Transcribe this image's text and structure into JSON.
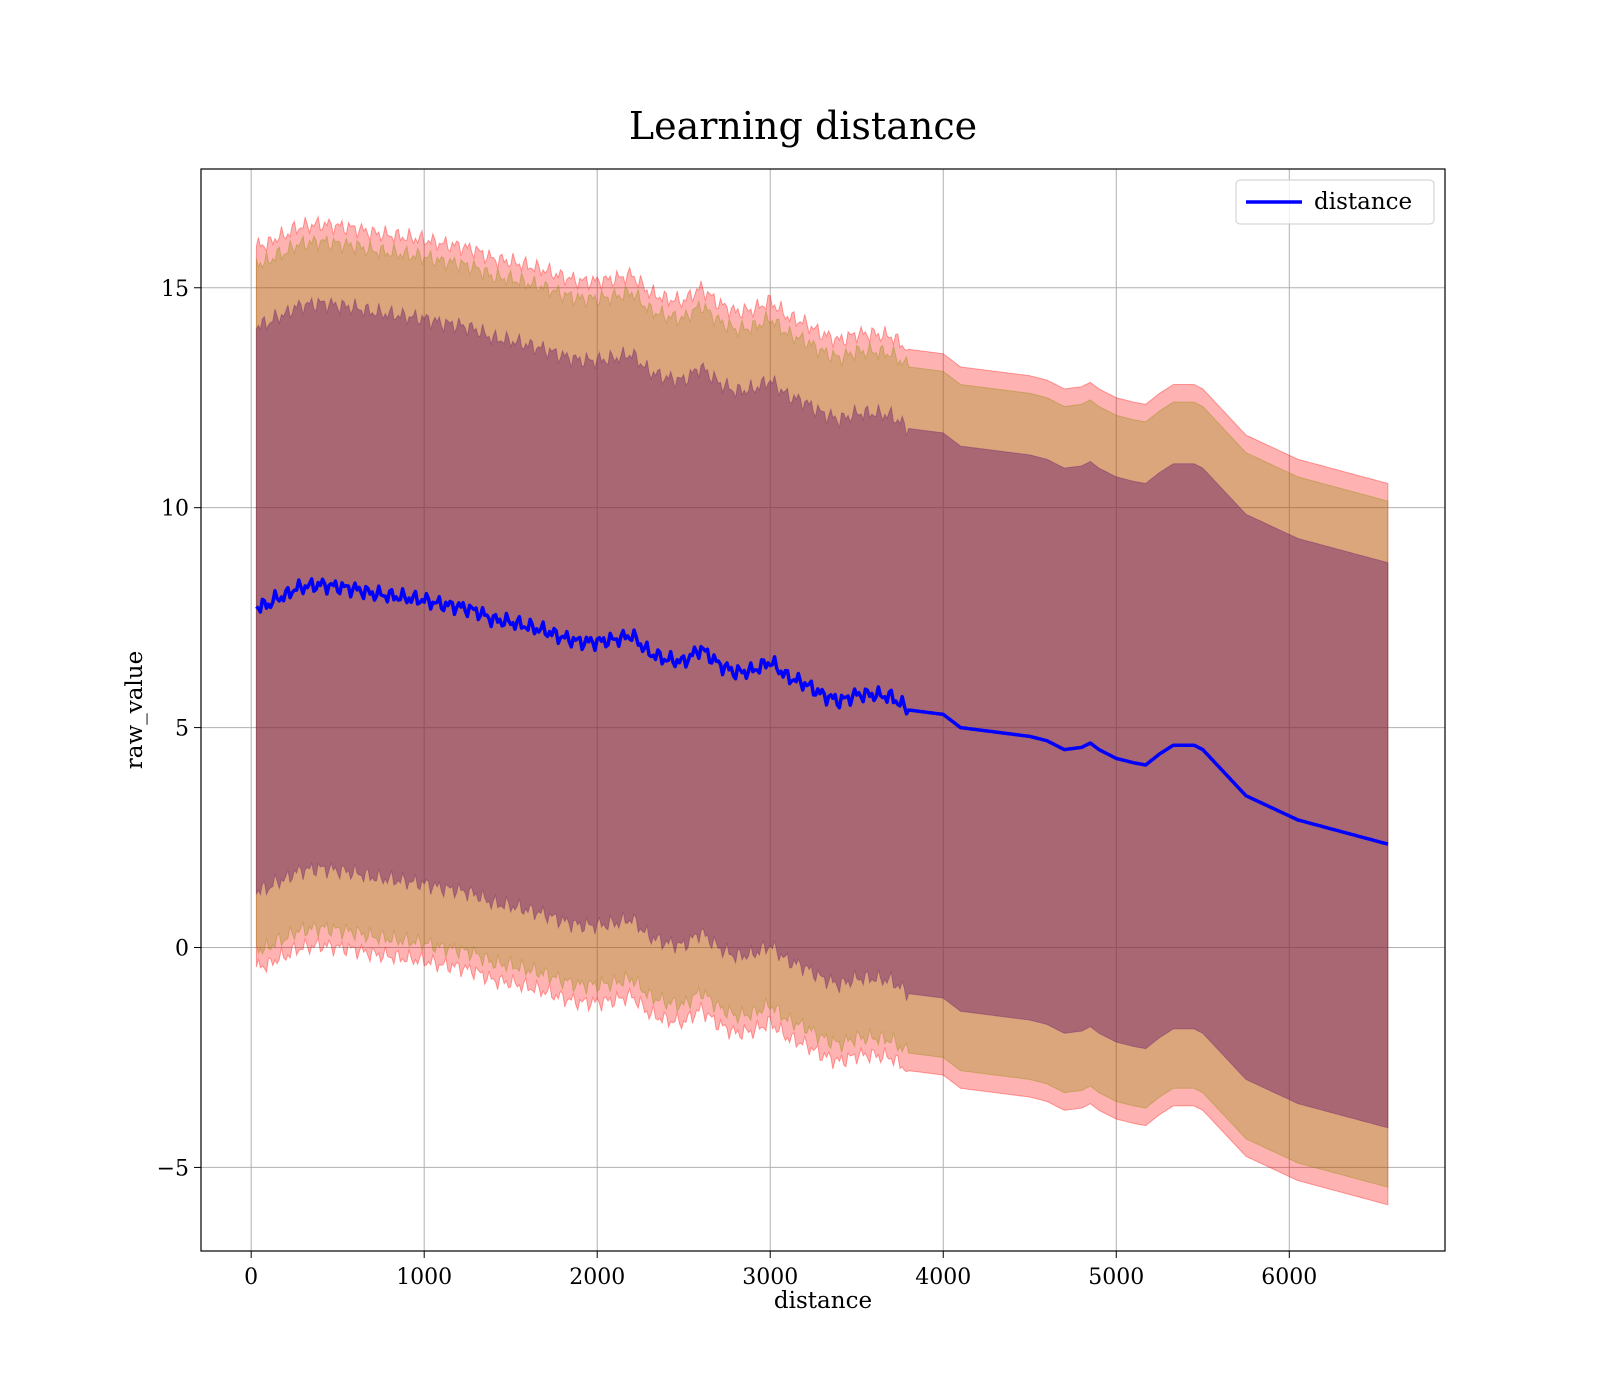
{
  "chart_data": {
    "type": "line",
    "title": "Learning distance",
    "xlabel": "distance",
    "ylabel": "raw_value",
    "xlim": [
      -290,
      6900
    ],
    "ylim": [
      -6.9,
      17.7
    ],
    "xticks": [
      0,
      1000,
      2000,
      3000,
      4000,
      5000,
      6000
    ],
    "yticks": [
      -5,
      0,
      5,
      10,
      15
    ],
    "xtick_labels": [
      "0",
      "1000",
      "2000",
      "3000",
      "4000",
      "5000",
      "6000"
    ],
    "ytick_labels": [
      "−5",
      "0",
      "5",
      "10",
      "15"
    ],
    "grid": true,
    "legend": {
      "position": "top-right",
      "entries": [
        "distance"
      ]
    },
    "x": [
      30,
      100,
      150,
      200,
      250,
      300,
      400,
      500,
      600,
      700,
      800,
      900,
      1000,
      1100,
      1200,
      1300,
      1400,
      1500,
      1600,
      1700,
      1800,
      1900,
      2000,
      2100,
      2200,
      2300,
      2400,
      2500,
      2600,
      2700,
      2800,
      2900,
      3000,
      3100,
      3200,
      3300,
      3400,
      3500,
      3600,
      3700,
      3800,
      3900,
      4000,
      4100,
      4200,
      4300,
      4400,
      4500,
      4600,
      4700,
      4800,
      4850,
      4900,
      5000,
      5100,
      5170,
      5250,
      5330,
      5450,
      5500,
      5750,
      6050,
      6570
    ],
    "series": [
      {
        "name": "distance",
        "color": "#0000ff",
        "values": [
          7.75,
          7.8,
          7.95,
          8.0,
          8.15,
          8.2,
          8.25,
          8.2,
          8.15,
          8.05,
          8.0,
          7.95,
          7.9,
          7.8,
          7.75,
          7.65,
          7.45,
          7.4,
          7.3,
          7.2,
          7.05,
          6.95,
          6.95,
          7.0,
          7.1,
          6.7,
          6.55,
          6.5,
          6.8,
          6.45,
          6.25,
          6.3,
          6.5,
          6.15,
          6.0,
          5.75,
          5.6,
          5.75,
          5.75,
          5.7,
          5.4,
          5.35,
          5.3,
          5.0,
          4.95,
          4.9,
          4.85,
          4.8,
          4.7,
          4.5,
          4.55,
          4.65,
          4.5,
          4.3,
          4.2,
          4.15,
          4.4,
          4.6,
          4.6,
          4.5,
          3.45,
          2.9,
          2.35
        ]
      }
    ],
    "bands": [
      {
        "name": "",
        "color": "#ff0000",
        "opacity": 0.3,
        "upper": [
          15.95,
          16.0,
          16.15,
          16.2,
          16.35,
          16.4,
          16.45,
          16.4,
          16.35,
          16.25,
          16.2,
          16.15,
          16.1,
          16.0,
          15.95,
          15.85,
          15.65,
          15.6,
          15.5,
          15.4,
          15.25,
          15.15,
          15.15,
          15.2,
          15.3,
          14.9,
          14.75,
          14.7,
          15.0,
          14.65,
          14.45,
          14.5,
          14.7,
          14.35,
          14.2,
          13.95,
          13.8,
          13.95,
          13.95,
          13.9,
          13.6,
          13.55,
          13.5,
          13.2,
          13.15,
          13.1,
          13.05,
          13.0,
          12.9,
          12.7,
          12.75,
          12.85,
          12.7,
          12.5,
          12.4,
          12.35,
          12.6,
          12.8,
          12.8,
          12.7,
          11.65,
          11.1,
          10.55
        ],
        "lower": [
          -0.45,
          -0.4,
          -0.25,
          -0.2,
          -0.05,
          0.0,
          0.05,
          0.0,
          -0.05,
          -0.15,
          -0.2,
          -0.25,
          -0.3,
          -0.4,
          -0.45,
          -0.55,
          -0.75,
          -0.8,
          -0.9,
          -1.0,
          -1.15,
          -1.25,
          -1.25,
          -1.2,
          -1.1,
          -1.5,
          -1.65,
          -1.7,
          -1.4,
          -1.75,
          -1.95,
          -1.9,
          -1.7,
          -2.05,
          -2.2,
          -2.45,
          -2.6,
          -2.45,
          -2.45,
          -2.5,
          -2.8,
          -2.85,
          -2.9,
          -3.2,
          -3.25,
          -3.3,
          -3.35,
          -3.4,
          -3.5,
          -3.7,
          -3.65,
          -3.55,
          -3.7,
          -3.9,
          -4.0,
          -4.05,
          -3.8,
          -3.6,
          -3.6,
          -3.7,
          -4.75,
          -5.3,
          -5.85
        ]
      },
      {
        "name": "",
        "color": "#8b8b00",
        "opacity": 0.3,
        "upper": [
          15.55,
          15.6,
          15.75,
          15.8,
          15.95,
          16.0,
          16.05,
          16.0,
          15.95,
          15.85,
          15.8,
          15.75,
          15.7,
          15.6,
          15.55,
          15.45,
          15.25,
          15.2,
          15.1,
          15.0,
          14.85,
          14.75,
          14.75,
          14.8,
          14.9,
          14.5,
          14.35,
          14.3,
          14.6,
          14.25,
          14.05,
          14.1,
          14.3,
          13.95,
          13.8,
          13.55,
          13.4,
          13.55,
          13.55,
          13.5,
          13.2,
          13.15,
          13.1,
          12.8,
          12.75,
          12.7,
          12.65,
          12.6,
          12.5,
          12.3,
          12.35,
          12.45,
          12.3,
          12.1,
          12.0,
          11.95,
          12.2,
          12.4,
          12.4,
          12.3,
          11.25,
          10.7,
          10.15
        ],
        "lower": [
          -0.05,
          0.0,
          0.15,
          0.2,
          0.35,
          0.4,
          0.45,
          0.4,
          0.35,
          0.25,
          0.2,
          0.15,
          0.1,
          0.0,
          -0.05,
          -0.15,
          -0.35,
          -0.4,
          -0.5,
          -0.6,
          -0.75,
          -0.85,
          -0.85,
          -0.8,
          -0.7,
          -1.1,
          -1.25,
          -1.3,
          -1.0,
          -1.35,
          -1.55,
          -1.5,
          -1.3,
          -1.65,
          -1.8,
          -2.05,
          -2.2,
          -2.05,
          -2.05,
          -2.1,
          -2.4,
          -2.45,
          -2.5,
          -2.8,
          -2.85,
          -2.9,
          -2.95,
          -3.0,
          -3.1,
          -3.3,
          -3.25,
          -3.15,
          -3.3,
          -3.5,
          -3.6,
          -3.65,
          -3.4,
          -3.2,
          -3.2,
          -3.3,
          -4.35,
          -4.9,
          -5.45
        ]
      },
      {
        "name": "",
        "color": "#6a1b6a",
        "opacity": 0.45,
        "upper": [
          14.15,
          14.2,
          14.35,
          14.4,
          14.55,
          14.6,
          14.65,
          14.6,
          14.55,
          14.45,
          14.4,
          14.35,
          14.3,
          14.2,
          14.15,
          14.05,
          13.85,
          13.8,
          13.7,
          13.6,
          13.45,
          13.35,
          13.35,
          13.4,
          13.5,
          13.1,
          12.95,
          12.9,
          13.2,
          12.85,
          12.65,
          12.7,
          12.9,
          12.55,
          12.4,
          12.15,
          12.0,
          12.15,
          12.15,
          12.1,
          11.8,
          11.75,
          11.7,
          11.4,
          11.35,
          11.3,
          11.25,
          11.2,
          11.1,
          10.9,
          10.95,
          11.05,
          10.9,
          10.7,
          10.6,
          10.55,
          10.8,
          11.0,
          11.0,
          10.9,
          9.85,
          9.3,
          8.75
        ],
        "lower": [
          1.3,
          1.35,
          1.5,
          1.55,
          1.7,
          1.75,
          1.8,
          1.75,
          1.7,
          1.6,
          1.55,
          1.5,
          1.45,
          1.35,
          1.3,
          1.2,
          1.0,
          0.95,
          0.85,
          0.75,
          0.6,
          0.5,
          0.5,
          0.55,
          0.65,
          0.25,
          0.1,
          0.05,
          0.35,
          0.0,
          -0.2,
          -0.15,
          0.05,
          -0.3,
          -0.45,
          -0.7,
          -0.85,
          -0.7,
          -0.7,
          -0.75,
          -1.05,
          -1.1,
          -1.15,
          -1.45,
          -1.5,
          -1.55,
          -1.6,
          -1.65,
          -1.75,
          -1.95,
          -1.9,
          -1.8,
          -1.95,
          -2.15,
          -2.25,
          -2.3,
          -2.05,
          -1.85,
          -1.85,
          -1.95,
          -3.0,
          -3.55,
          -4.1
        ]
      }
    ]
  }
}
